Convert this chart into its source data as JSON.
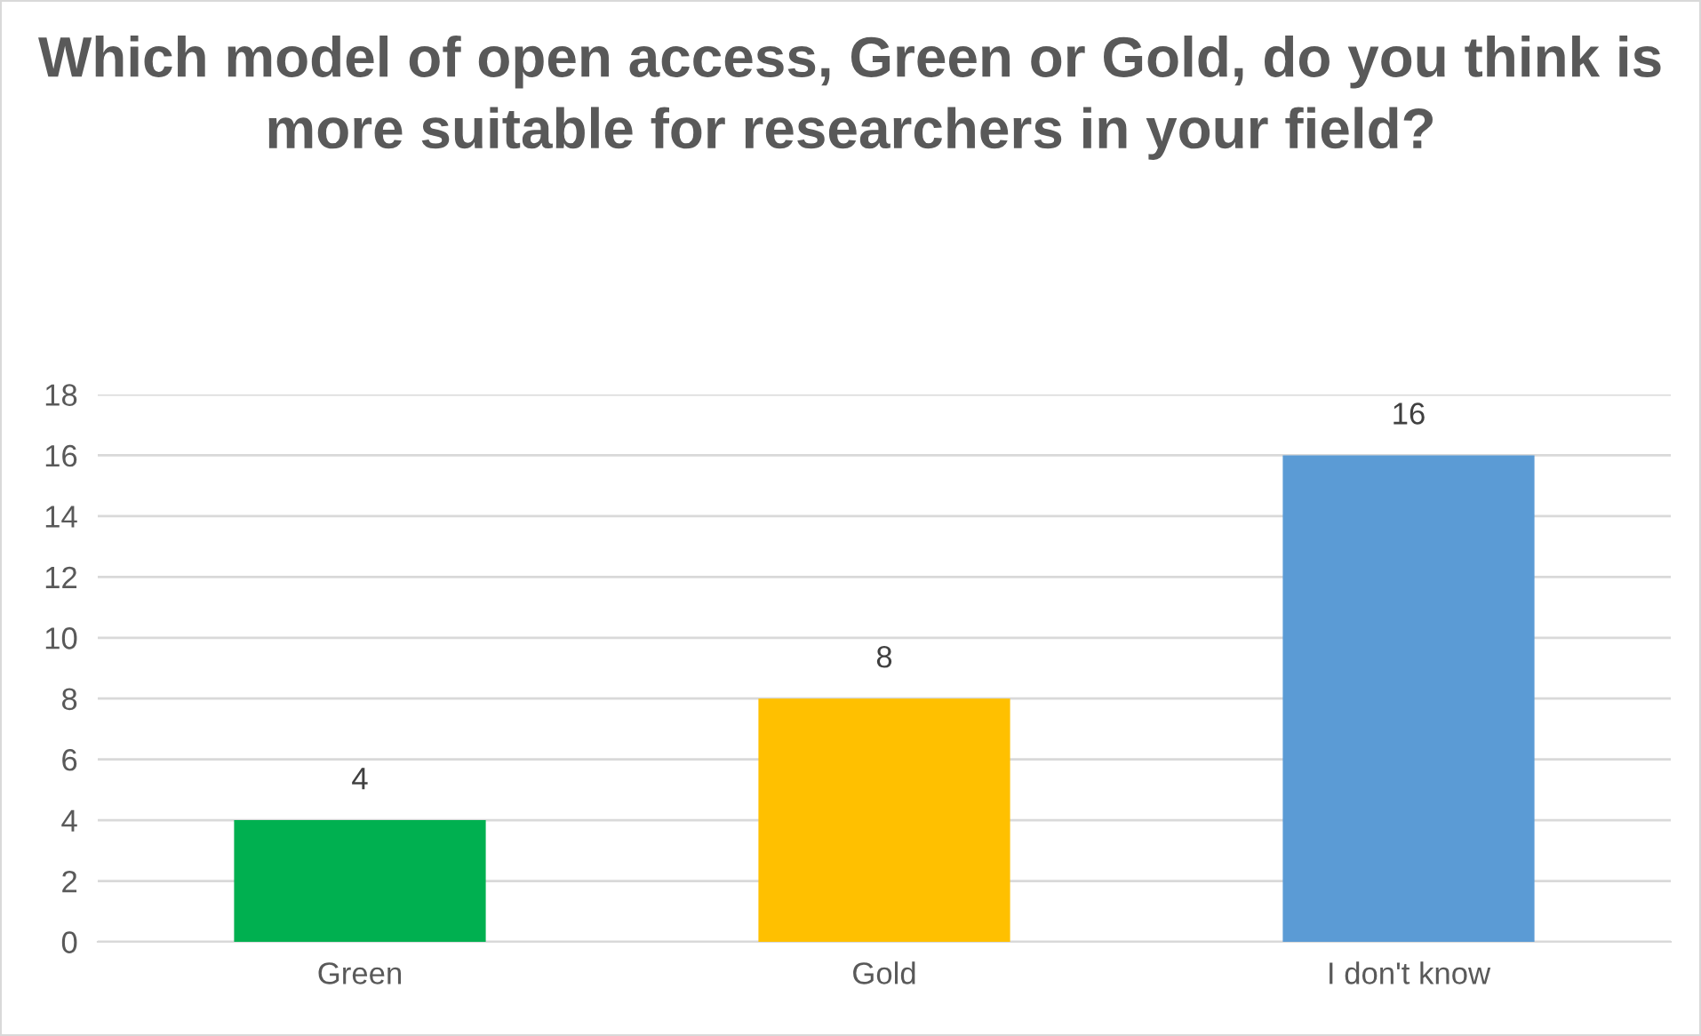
{
  "chart_data": {
    "type": "bar",
    "title": "Which model of open access, Green or Gold, do you think is more suitable for researchers in your field?",
    "categories": [
      "Green",
      "Gold",
      "I don't know"
    ],
    "values": [
      4,
      8,
      16
    ],
    "colors": [
      "#00b050",
      "#ffc000",
      "#5b9bd5"
    ],
    "ylim": [
      0,
      18
    ],
    "yticks": [
      0,
      2,
      4,
      6,
      8,
      10,
      12,
      14,
      16,
      18
    ],
    "grid": "y",
    "data_labels": true
  }
}
